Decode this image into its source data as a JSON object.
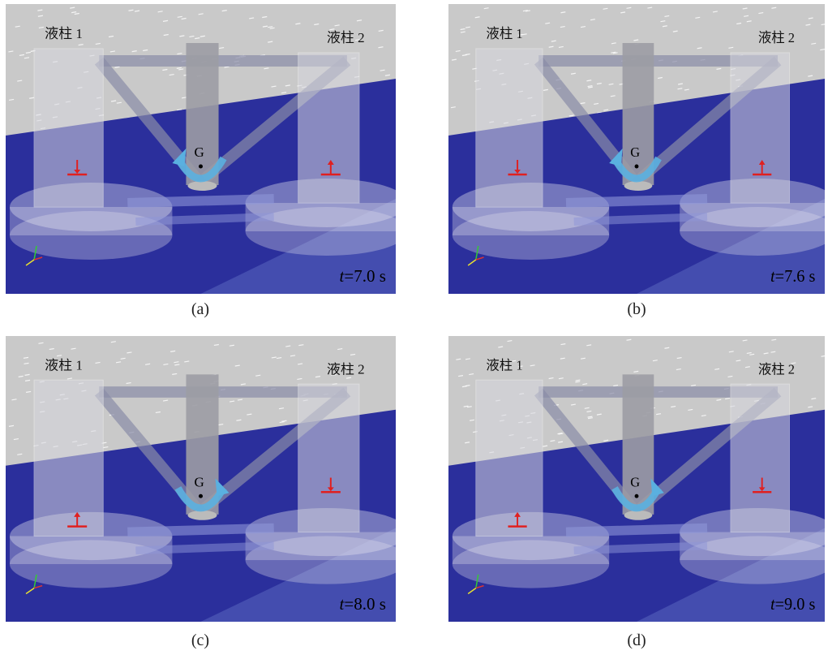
{
  "panels": [
    {
      "label": "(a)",
      "column_1": "液柱 1",
      "column_2": "液柱 2",
      "centroid": "G",
      "time": {
        "symbol": "t",
        "value": "=7.0 s"
      }
    },
    {
      "label": "(b)",
      "column_1": "液柱 1",
      "column_2": "液柱 2",
      "centroid": "G",
      "time": {
        "symbol": "t",
        "value": "=7.6 s"
      }
    },
    {
      "label": "(c)",
      "column_1": "液柱 1",
      "column_2": "液柱 2",
      "centroid": "G",
      "time": {
        "symbol": "t",
        "value": "=8.0 s"
      }
    },
    {
      "label": "(d)",
      "column_1": "液柱 1",
      "column_2": "液柱 2",
      "centroid": "G",
      "time": {
        "symbol": "t",
        "value": "=9.0 s"
      }
    }
  ]
}
